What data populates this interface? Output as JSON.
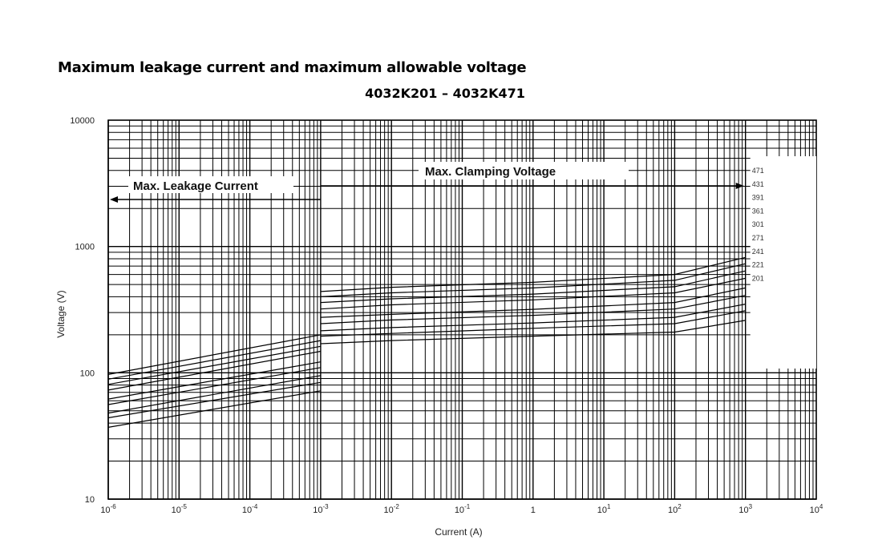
{
  "page": {
    "title": "Maximum leakage current and maximum allowable voltage",
    "subtitle": "4032K201 – 4032K471"
  },
  "chart_data": {
    "type": "line",
    "xscale": "log",
    "yscale": "log",
    "xlim": [
      1e-06,
      10000
    ],
    "ylim": [
      10,
      10000
    ],
    "xlabel": "Current (A)",
    "ylabel": "Voltage  (V)",
    "x_ticks": [
      {
        "value": 1e-06,
        "base": "10",
        "exp": "-6"
      },
      {
        "value": 1e-05,
        "base": "10",
        "exp": "-5"
      },
      {
        "value": 0.0001,
        "base": "10",
        "exp": "-4"
      },
      {
        "value": 0.001,
        "base": "10",
        "exp": "-3"
      },
      {
        "value": 0.01,
        "base": "10",
        "exp": "-2"
      },
      {
        "value": 0.1,
        "base": "10",
        "exp": "-1"
      },
      {
        "value": 1,
        "base": "1",
        "exp": ""
      },
      {
        "value": 10,
        "base": "10",
        "exp": "1"
      },
      {
        "value": 100,
        "base": "10",
        "exp": "2"
      },
      {
        "value": 1000,
        "base": "10",
        "exp": "3"
      },
      {
        "value": 10000,
        "base": "10",
        "exp": "4"
      }
    ],
    "y_ticks": [
      {
        "value": 10,
        "label": "10"
      },
      {
        "value": 100,
        "label": "100"
      },
      {
        "value": 1000,
        "label": "1000"
      },
      {
        "value": 10000,
        "label": "10000"
      }
    ],
    "region_labels": {
      "leakage": "Max. Leakage Current",
      "clamping": "Max. Clamping  Voltage"
    },
    "leakage_series": [
      {
        "name": "201",
        "x": [
          1e-06,
          0.001
        ],
        "y": [
          37,
          72
        ]
      },
      {
        "name": "221",
        "x": [
          1e-06,
          0.001
        ],
        "y": [
          44,
          84
        ]
      },
      {
        "name": "241",
        "x": [
          1e-06,
          0.001
        ],
        "y": [
          48,
          95
        ]
      },
      {
        "name": "271",
        "x": [
          1e-06,
          0.001
        ],
        "y": [
          56,
          110
        ]
      },
      {
        "name": "301",
        "x": [
          1e-06,
          0.001
        ],
        "y": [
          62,
          122
        ]
      },
      {
        "name": "361",
        "x": [
          1e-06,
          0.001
        ],
        "y": [
          73,
          148
        ]
      },
      {
        "name": "391",
        "x": [
          1e-06,
          0.001
        ],
        "y": [
          81,
          162
        ]
      },
      {
        "name": "431",
        "x": [
          1e-06,
          0.001
        ],
        "y": [
          89,
          180
        ]
      },
      {
        "name": "471",
        "x": [
          1e-06,
          0.001
        ],
        "y": [
          97,
          200
        ]
      }
    ],
    "clamping_series": [
      {
        "name": "201",
        "x": [
          0.001,
          0.01,
          1,
          100,
          1000
        ],
        "y": [
          170,
          180,
          195,
          210,
          260
        ]
      },
      {
        "name": "221",
        "x": [
          0.001,
          0.01,
          1,
          100,
          1000
        ],
        "y": [
          195,
          205,
          225,
          245,
          310
        ]
      },
      {
        "name": "241",
        "x": [
          0.001,
          0.01,
          1,
          100,
          1000
        ],
        "y": [
          215,
          228,
          248,
          275,
          350
        ]
      },
      {
        "name": "271",
        "x": [
          0.001,
          0.01,
          1,
          100,
          1000
        ],
        "y": [
          245,
          262,
          285,
          320,
          410
        ]
      },
      {
        "name": "301",
        "x": [
          0.001,
          0.01,
          1,
          100,
          1000
        ],
        "y": [
          275,
          290,
          318,
          360,
          470
        ]
      },
      {
        "name": "361",
        "x": [
          0.001,
          0.01,
          1,
          100,
          1000
        ],
        "y": [
          320,
          345,
          378,
          430,
          560
        ]
      },
      {
        "name": "391",
        "x": [
          0.001,
          0.01,
          1,
          100,
          1000
        ],
        "y": [
          360,
          385,
          420,
          480,
          640
        ]
      },
      {
        "name": "431",
        "x": [
          0.001,
          0.01,
          1,
          100,
          1000
        ],
        "y": [
          400,
          430,
          470,
          540,
          730
        ]
      },
      {
        "name": "471",
        "x": [
          0.001,
          0.01,
          1,
          100,
          1000
        ],
        "y": [
          440,
          475,
          520,
          600,
          820
        ]
      }
    ],
    "right_labels": [
      "471",
      "431",
      "391",
      "361",
      "301",
      "271",
      "241",
      "221",
      "201"
    ],
    "grid": true,
    "legend": "none"
  }
}
